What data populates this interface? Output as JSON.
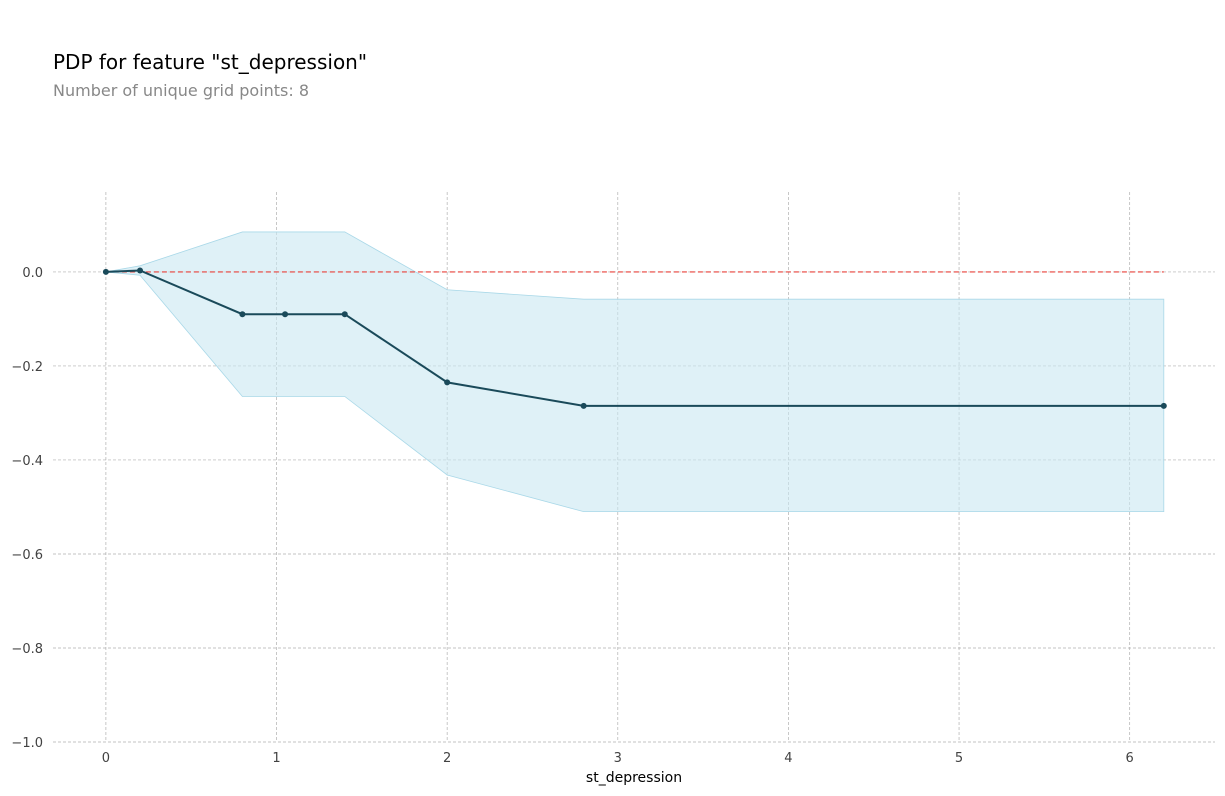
{
  "chart_data": {
    "type": "line",
    "title": "PDP for feature \"st_depression\"",
    "subtitle": "Number of unique grid points: 8",
    "xlabel": "st_depression",
    "ylabel": "",
    "xlim": [
      -0.31,
      6.5
    ],
    "ylim": [
      -1.0,
      0.17
    ],
    "x_ticks": [
      0,
      1,
      2,
      3,
      4,
      5,
      6
    ],
    "y_ticks": [
      0.0,
      -0.2,
      -0.4,
      -0.6,
      -0.8,
      -1.0
    ],
    "x_tick_labels": [
      "0",
      "1",
      "2",
      "3",
      "4",
      "5",
      "6"
    ],
    "y_tick_labels": [
      "0.0",
      "−0.2",
      "−0.4",
      "−0.6",
      "−0.8",
      "−1.0"
    ],
    "grid": true,
    "series": [
      {
        "x": [
          0.0,
          0.2,
          0.8,
          1.05,
          1.4,
          2.0,
          2.8,
          6.2
        ],
        "values": [
          0.0,
          0.003,
          -0.09,
          -0.09,
          -0.09,
          -0.235,
          -0.285,
          -0.285
        ],
        "upper": [
          0.0,
          0.013,
          0.085,
          0.085,
          0.085,
          -0.038,
          -0.058,
          -0.058
        ],
        "lower": [
          0.0,
          -0.007,
          -0.265,
          -0.265,
          -0.265,
          -0.432,
          -0.51,
          -0.51
        ]
      }
    ],
    "baseline": {
      "y": 0.0,
      "x_range": [
        0.0,
        6.2
      ]
    },
    "colors": {
      "line": "#1a4a5a",
      "band": "#c9e7f1",
      "baseline": "#e8413a",
      "grid": "#b0b0b0"
    }
  }
}
